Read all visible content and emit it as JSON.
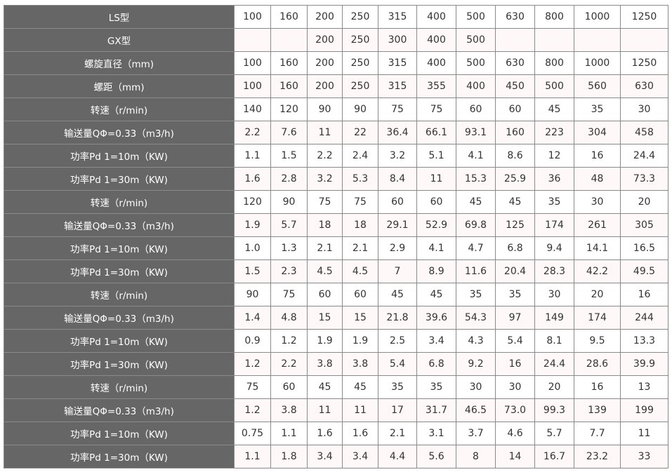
{
  "colors": {
    "header_bg": "#666666",
    "row_alt_bg": "#fff8f8",
    "border": "#8a8a8a"
  },
  "rows": [
    {
      "label": "LS型",
      "values": [
        "100",
        "160",
        "200",
        "250",
        "315",
        "400",
        "500",
        "630",
        "800",
        "1000",
        "1250"
      ]
    },
    {
      "label": "GX型",
      "values": [
        "",
        "",
        "200",
        "250",
        "300",
        "400",
        "500",
        "",
        "",
        "",
        ""
      ]
    },
    {
      "label": "螺旋直径（mm)",
      "values": [
        "100",
        "160",
        "200",
        "250",
        "315",
        "400",
        "500",
        "630",
        "800",
        "1000",
        "1250"
      ]
    },
    {
      "label": "螺距（mm)",
      "values": [
        "100",
        "160",
        "200",
        "250",
        "315",
        "355",
        "400",
        "450",
        "500",
        "560",
        "630"
      ]
    },
    {
      "label": "转速（r/min)",
      "values": [
        "140",
        "120",
        "90",
        "90",
        "75",
        "75",
        "60",
        "60",
        "45",
        "35",
        "30"
      ]
    },
    {
      "label": "输送量QΦ=0.33（m3/h)",
      "values": [
        "2.2",
        "7.6",
        "11",
        "22",
        "36.4",
        "66.1",
        "93.1",
        "160",
        "223",
        "304",
        "458"
      ]
    },
    {
      "label": "功率Pd 1=10m（KW)",
      "values": [
        "1.1",
        "1.5",
        "2.2",
        "2.4",
        "3.2",
        "5.1",
        "4.1",
        "8.6",
        "12",
        "16",
        "24.4"
      ]
    },
    {
      "label": "功率Pd 1=30m（KW)",
      "values": [
        "1.6",
        "2.8",
        "3.2",
        "5.3",
        "8.4",
        "11",
        "15.3",
        "25.9",
        "36",
        "48",
        "73.3"
      ]
    },
    {
      "label": "转速（r/min)",
      "values": [
        "120",
        "90",
        "75",
        "75",
        "60",
        "60",
        "45",
        "45",
        "35",
        "30",
        "20"
      ]
    },
    {
      "label": "输送量QΦ=0.33（m3/h)",
      "values": [
        "1.9",
        "5.7",
        "18",
        "18",
        "29.1",
        "52.9",
        "69.8",
        "125",
        "174",
        "261",
        "305"
      ]
    },
    {
      "label": "功率Pd 1=10m（KW)",
      "values": [
        "1.0",
        "1.3",
        "2.1",
        "2.1",
        "2.9",
        "4.1",
        "4.7",
        "6.8",
        "9.4",
        "14.1",
        "16.5"
      ]
    },
    {
      "label": "功率Pd 1=30m（KW)",
      "values": [
        "1.5",
        "2.3",
        "4.5",
        "4.5",
        "7",
        "8.9",
        "11.6",
        "20.4",
        "28.3",
        "42.2",
        "49.5"
      ]
    },
    {
      "label": "转速（r/min)",
      "values": [
        "90",
        "75",
        "60",
        "60",
        "45",
        "45",
        "35",
        "35",
        "30",
        "20",
        "16"
      ]
    },
    {
      "label": "输送量QΦ=0.33（m3/h)",
      "values": [
        "1.4",
        "4.8",
        "15",
        "15",
        "21.8",
        "39.6",
        "54.3",
        "97",
        "149",
        "174",
        "244"
      ]
    },
    {
      "label": "功率Pd 1=10m（KW)",
      "values": [
        "0.9",
        "1.2",
        "1.9",
        "1.9",
        "2.5",
        "3.4",
        "4.3",
        "5.4",
        "8.1",
        "9.5",
        "13.3"
      ]
    },
    {
      "label": "功率Pd 1=30m（KW)",
      "values": [
        "1.2",
        "2.2",
        "3.8",
        "3.8",
        "5.4",
        "6.8",
        "9.2",
        "16",
        "24.4",
        "28.6",
        "39.9"
      ]
    },
    {
      "label": "转速（r/min)",
      "values": [
        "75",
        "60",
        "45",
        "45",
        "35",
        "35",
        "30",
        "30",
        "20",
        "16",
        "13"
      ]
    },
    {
      "label": "输送量QΦ=0.33（m3/h)",
      "values": [
        "1.2",
        "3.8",
        "11",
        "11",
        "17",
        "31.7",
        "46.5",
        "73.0",
        "99.3",
        "139",
        "199"
      ]
    },
    {
      "label": "功率Pd 1=10m（KW)",
      "values": [
        "0.75",
        "1.1",
        "1.6",
        "1.6",
        "2.1",
        "3.1",
        "3.7",
        "4.6",
        "5.7",
        "7.7",
        "11"
      ]
    },
    {
      "label": "功率Pd 1=30m（KW)",
      "values": [
        "1.1",
        "1.8",
        "3.4",
        "3.4",
        "4.4",
        "5.6",
        "8",
        "14",
        "16.7",
        "23.2",
        "33"
      ]
    }
  ]
}
